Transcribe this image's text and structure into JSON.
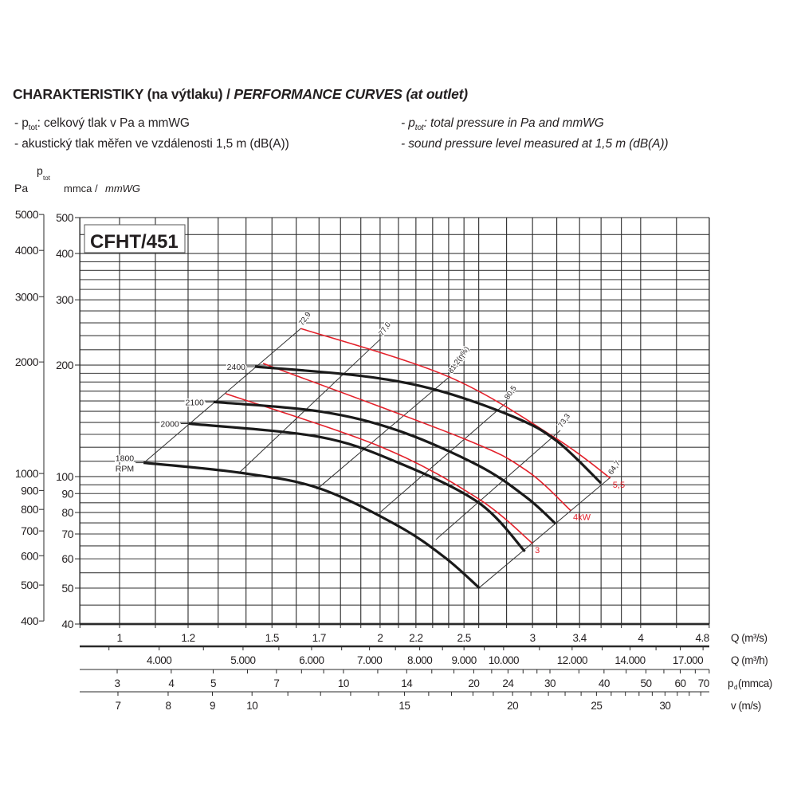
{
  "title": {
    "cz": "CHARAKTERISTIKY (na výtlaku) /",
    "en": "PERFORMANCE CURVES (at outlet)"
  },
  "notes_cz": [
    {
      "prefix": "- p",
      "sub": "tot",
      "text": ": celkový tlak v Pa a mmWG"
    },
    {
      "prefix": "",
      "sub": "",
      "text": "- akustický tlak měřen ve vzdálenosti 1,5 m (dB(A))"
    }
  ],
  "notes_en": [
    {
      "prefix": "- p",
      "sub": "tot",
      "text": ": total pressure in Pa and mmWG"
    },
    {
      "prefix": "",
      "sub": "",
      "text": "- sound pressure level measured at 1,5 m (dB(A))"
    }
  ],
  "chart_data": {
    "type": "line",
    "model": "CFHT/451",
    "y_axis": {
      "label_pa": "Pa",
      "label_p": "p",
      "label_sub": "tot",
      "label_mm": "mmca /",
      "label_mm_en": "mmWG",
      "scale": "log",
      "range_mmwg": [
        40,
        500
      ],
      "ticks_mmwg": [
        "40",
        "50",
        "60",
        "70",
        "80",
        "90",
        "100",
        "200",
        "300",
        "400",
        "500"
      ],
      "ticks_pa": [
        "400",
        "500",
        "600",
        "700",
        "800",
        "900",
        "1000",
        "2000",
        "3000",
        "4000",
        "5000"
      ],
      "grid_mmwg": [
        40,
        45,
        50,
        55,
        60,
        65,
        70,
        75,
        80,
        85,
        90,
        95,
        100,
        110,
        120,
        130,
        140,
        150,
        160,
        170,
        180,
        190,
        200,
        220,
        240,
        260,
        280,
        300,
        320,
        340,
        360,
        380,
        400,
        450,
        500
      ]
    },
    "x_axes": [
      {
        "unit": "Q (m³/s)",
        "labels": [
          "1",
          "1.2",
          "1.5",
          "1.7",
          "2",
          "2.2",
          "2.5",
          "3",
          "3.4",
          "4",
          "4.8"
        ],
        "values": [
          1,
          1.2,
          1.5,
          1.7,
          2,
          2.2,
          2.5,
          3,
          3.4,
          4,
          4.8
        ],
        "minor": [
          0.9,
          1,
          1.1,
          1.2,
          1.3,
          1.4,
          1.5,
          1.6,
          1.7,
          1.8,
          1.9,
          2,
          2.1,
          2.2,
          2.3,
          2.4,
          2.5,
          2.6,
          2.8,
          3,
          3.2,
          3.4,
          3.6,
          3.8,
          4,
          4.4,
          4.8
        ]
      },
      {
        "unit": "Q (m³/h)",
        "labels": [
          "4.000",
          "5.000",
          "6.000",
          "7.000",
          "8.000",
          "9.000",
          "10.000",
          "12.000",
          "14.000",
          "17.000"
        ],
        "values": [
          4000,
          5000,
          6000,
          7000,
          8000,
          9000,
          10000,
          12000,
          14000,
          17000
        ],
        "minor": [
          3500,
          4000,
          4500,
          5000,
          5500,
          6000,
          6500,
          7000,
          7500,
          8000,
          8500,
          9000,
          9500,
          10000,
          11000,
          12000,
          13000,
          14000,
          15000,
          16000,
          17000
        ]
      },
      {
        "unit_p": "p",
        "unit_sub": "d",
        "unit": "(mmca)",
        "labels": [
          "3",
          "4",
          "5",
          "7",
          "10",
          "14",
          "20",
          "24",
          "30",
          "40",
          "50",
          "60",
          "70"
        ],
        "values": [
          3,
          4,
          5,
          7,
          10,
          14,
          20,
          24,
          30,
          40,
          50,
          60,
          70
        ],
        "minor": [
          3,
          4,
          5,
          6,
          7,
          8,
          9,
          10,
          12,
          14,
          16,
          18,
          20,
          22,
          24,
          26,
          28,
          30,
          35,
          40,
          45,
          50,
          55,
          60,
          65,
          70
        ]
      },
      {
        "unit": "v (m/s)",
        "labels": [
          "7",
          "8",
          "9",
          "10",
          "15",
          "20",
          "25",
          "30"
        ],
        "values": [
          7,
          8,
          9,
          10,
          15,
          20,
          25,
          30
        ],
        "minor": [
          7,
          8,
          9,
          10,
          11,
          12,
          13,
          14,
          15,
          16,
          17,
          18,
          19,
          20,
          21,
          22,
          23,
          24,
          25,
          26,
          27,
          28,
          29,
          30,
          31,
          32,
          33
        ]
      }
    ],
    "xlim_m3s": [
      0.84,
      4.8
    ],
    "series": [
      {
        "name": "1800",
        "sub": "RPM",
        "points": [
          [
            1.066,
            109
          ],
          [
            1.375,
            102.5
          ],
          [
            1.7,
            93
          ],
          [
            2.1,
            73.5
          ],
          [
            2.38,
            60.3
          ],
          [
            2.605,
            50
          ]
        ]
      },
      {
        "name": "2000",
        "points": [
          [
            1.202,
            139
          ],
          [
            1.7,
            128
          ],
          [
            2.1,
            109
          ],
          [
            2.6,
            85
          ],
          [
            2.94,
            62.8
          ]
        ]
      },
      {
        "name": "2100",
        "points": [
          [
            1.284,
            159
          ],
          [
            1.7,
            150
          ],
          [
            2.1,
            133
          ],
          [
            2.6,
            107
          ],
          [
            2.95,
            88
          ],
          [
            3.19,
            74.6
          ]
        ]
      },
      {
        "name": "2400",
        "points": [
          [
            1.434,
            198
          ],
          [
            1.9,
            187
          ],
          [
            2.33,
            171
          ],
          [
            2.88,
            143.6
          ],
          [
            3.21,
            124
          ],
          [
            3.6,
            96
          ]
        ]
      }
    ],
    "power_curves": [
      {
        "name": "3",
        "points": [
          [
            1.326,
            167.4
          ],
          [
            2.01,
            120
          ],
          [
            2.6,
            87
          ],
          [
            3.0,
            66
          ]
        ]
      },
      {
        "name": "4kW",
        "points": [
          [
            1.465,
            202
          ],
          [
            2.49,
            127
          ],
          [
            2.95,
            104
          ],
          [
            3.32,
            81
          ]
        ]
      },
      {
        "name": "5,5",
        "points": [
          [
            1.62,
            251
          ],
          [
            2.4,
            186
          ],
          [
            3.19,
            127
          ],
          [
            3.69,
            99
          ]
        ]
      }
    ],
    "efficiency_lines": [
      {
        "label": "72,9",
        "points": [
          [
            1.072,
            110
          ],
          [
            1.62,
            251
          ]
        ]
      },
      {
        "label": "77,0",
        "points": [
          [
            1.375,
            102.5
          ],
          [
            2.004,
            235.6
          ]
        ]
      },
      {
        "label": "81,2(η%)",
        "points": [
          [
            1.69,
            92.4
          ],
          [
            2.41,
            186.6
          ]
        ]
      },
      {
        "label": "80,5",
        "points": [
          [
            2.004,
            80.4
          ],
          [
            2.8,
            158.5
          ]
        ]
      },
      {
        "label": "73,3",
        "points": [
          [
            2.32,
            67.6
          ],
          [
            3.23,
            133.3
          ]
        ]
      },
      {
        "label": "64,7",
        "points": [
          [
            2.6,
            50
          ],
          [
            3.69,
            99.5
          ]
        ]
      }
    ],
    "colors": {
      "rpm": "#1a1a1a",
      "power": "#e3202a",
      "grid": "#2a2a2a"
    }
  }
}
